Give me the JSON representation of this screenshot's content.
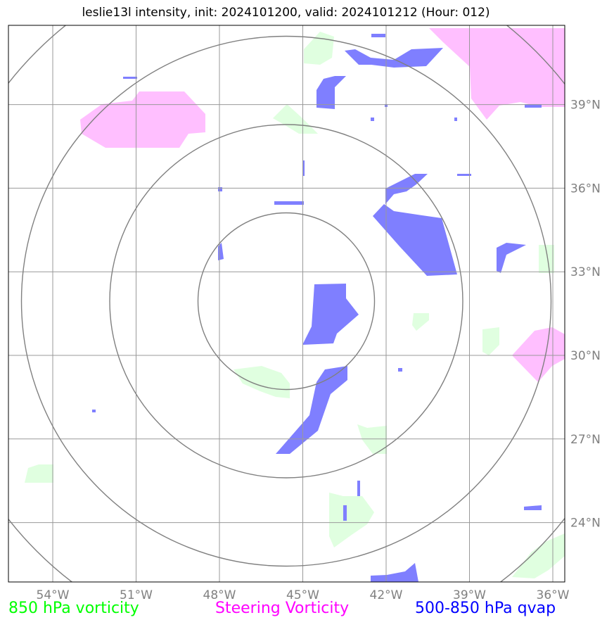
{
  "title": "leslie13l intensity, init: 2024101200, valid: 2024101212 (Hour: 012)",
  "map": {
    "lon_ticks": [
      {
        "value": -54,
        "label": "54°W"
      },
      {
        "value": -51,
        "label": "51°W"
      },
      {
        "value": -48,
        "label": "48°W"
      },
      {
        "value": -45,
        "label": "45°W"
      },
      {
        "value": -42,
        "label": "42°W"
      },
      {
        "value": -39,
        "label": "39°W"
      },
      {
        "value": -36,
        "label": "36°W"
      }
    ],
    "lat_ticks": [
      {
        "value": 39,
        "label": "39°N"
      },
      {
        "value": 36,
        "label": "36°N"
      },
      {
        "value": 33,
        "label": "33°N"
      },
      {
        "value": 30,
        "label": "30°N"
      },
      {
        "value": 27,
        "label": "27°N"
      },
      {
        "value": 24,
        "label": "24°N"
      }
    ],
    "grid_color": "#999999",
    "range_ring_color": "#808080",
    "range_ring_count": 4
  },
  "fields": {
    "vorticity_850": {
      "color": "#e0ffe0"
    },
    "steering_vorticity": {
      "color": "#ffbfff"
    },
    "qvap_500_850": {
      "color": "#7f7fff"
    }
  },
  "legend": [
    {
      "label": "850 hPa vorticity",
      "color": "#00ff00"
    },
    {
      "label": "Steering Vorticity",
      "color": "#ff00ff"
    },
    {
      "label": "500-850 hPa qvap",
      "color": "#0000ff"
    }
  ]
}
